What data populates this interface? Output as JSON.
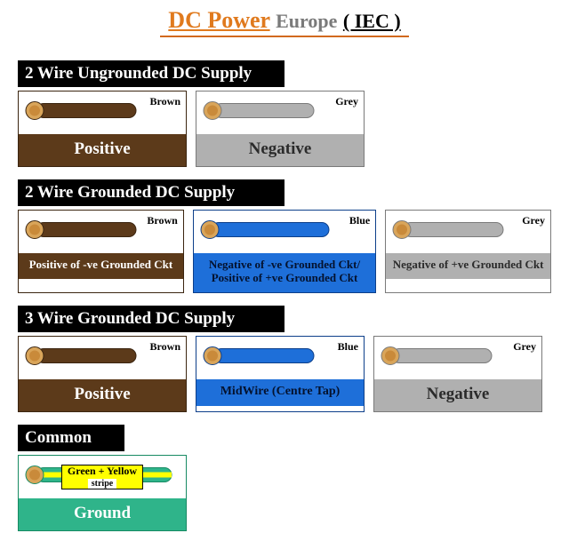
{
  "title": {
    "main": "DC Power",
    "main_color": "#e07a1e",
    "sub": "Europe",
    "sub_color": "#7a7a7a",
    "tail": "( IEC )",
    "tail_color": "#000000"
  },
  "wire_colors": {
    "brown": {
      "body": "#5c3a1a",
      "border": "#3b2510",
      "core": "#d9a55a",
      "label": "Brown",
      "label_color": "#000000",
      "label_fill": "#5c3a1a",
      "label_text": "#ffffff"
    },
    "grey": {
      "body": "#b0b0b0",
      "border": "#7a7a7a",
      "core": "#d9a55a",
      "label": "Grey",
      "label_color": "#000000",
      "label_fill": "#b0b0b0",
      "label_text": "#000000"
    },
    "blue": {
      "body": "#1e6fd9",
      "border": "#0d3f8a",
      "core": "#d9a55a",
      "label": "Blue",
      "label_color": "#000000",
      "label_fill": "#ffffff",
      "label_text": "#1e6fd9"
    },
    "ground": {
      "body": "#2fb48a",
      "border": "#178a63",
      "core": "#d9a55a",
      "stripe": "#ffff00",
      "label": "Green + Yellow",
      "sublabel": "stripe"
    }
  },
  "sections": [
    {
      "title": "2 Wire Ungrounded DC Supply",
      "cards": [
        {
          "color_key": "brown",
          "caption": "Positive",
          "caption_size": "big"
        },
        {
          "color_key": "grey",
          "caption": "Negative",
          "caption_size": "big"
        }
      ]
    },
    {
      "title": "2 Wire Grounded DC Supply",
      "cards": [
        {
          "color_key": "brown",
          "caption": "Positive of -ve Grounded Ckt",
          "caption_size": "small"
        },
        {
          "color_key": "blue",
          "caption": "Negative of -ve Grounded Ckt/ Positive of +ve Grounded Ckt",
          "caption_size": "small",
          "wide": true
        },
        {
          "color_key": "grey",
          "caption": "Negative of +ve Grounded Ckt",
          "caption_size": "small"
        }
      ]
    },
    {
      "title": "3 Wire Grounded DC Supply",
      "cards": [
        {
          "color_key": "brown",
          "caption": "Positive",
          "caption_size": "big"
        },
        {
          "color_key": "blue",
          "caption": "MidWire (Centre Tap)",
          "caption_size": "mid"
        },
        {
          "color_key": "grey",
          "caption": "Negative",
          "caption_size": "big"
        }
      ]
    }
  ],
  "common": {
    "header": "Common",
    "caption": "Ground"
  }
}
